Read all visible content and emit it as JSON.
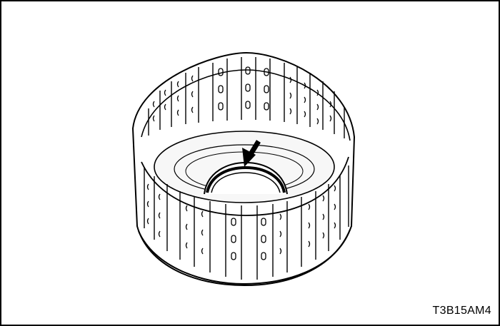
{
  "figure": {
    "code": "T3B15AM4",
    "subject": "clutch-drum",
    "callout": "arrow-pointing-to-snap-ring-groove"
  },
  "colors": {
    "line": "#000000",
    "fill": "#ffffff",
    "ring_shade": "#bdbdbd",
    "drum_shade": "#f2f2f2"
  }
}
